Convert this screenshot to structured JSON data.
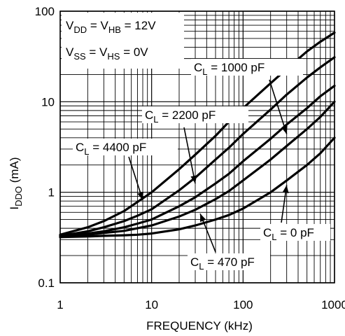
{
  "chart_data": {
    "type": "line",
    "xlabel": "FREQUENCY (kHz)",
    "ylabel": {
      "main": "I",
      "sub": "DDO",
      "unit": " (mA)"
    },
    "xscale": "log",
    "yscale": "log",
    "xlim": [
      1,
      1000
    ],
    "ylim": [
      0.1,
      100
    ],
    "grid": true,
    "x_ticks": [
      {
        "value": 1,
        "label": "1"
      },
      {
        "value": 10,
        "label": "10"
      },
      {
        "value": 100,
        "label": "100"
      },
      {
        "value": 1000,
        "label": "1000"
      }
    ],
    "y_ticks": [
      {
        "value": 0.1,
        "label": "0.1"
      },
      {
        "value": 1,
        "label": "1"
      },
      {
        "value": 10,
        "label": "10"
      },
      {
        "value": 100,
        "label": "100"
      }
    ],
    "conditions": [
      {
        "parts": [
          [
            "V",
            ""
          ],
          [
            "DD",
            "sub"
          ],
          [
            " = V",
            ""
          ],
          [
            "HB",
            "sub"
          ],
          [
            " = 12V",
            ""
          ]
        ]
      },
      {
        "parts": [
          [
            "V",
            ""
          ],
          [
            "SS",
            "sub"
          ],
          [
            " = V",
            ""
          ],
          [
            "HS",
            "sub"
          ],
          [
            " = 0V",
            ""
          ]
        ]
      }
    ],
    "series": [
      {
        "name": {
          "main": "C",
          "sub": "L",
          "rest": " = 4400 pF"
        },
        "points": [
          [
            1,
            0.34
          ],
          [
            2,
            0.41
          ],
          [
            3,
            0.48
          ],
          [
            5,
            0.62
          ],
          [
            7,
            0.78
          ],
          [
            10,
            1.0
          ],
          [
            20,
            1.8
          ],
          [
            30,
            2.6
          ],
          [
            50,
            4.2
          ],
          [
            70,
            6.0
          ],
          [
            100,
            8.5
          ],
          [
            200,
            16
          ],
          [
            300,
            23
          ],
          [
            500,
            36
          ],
          [
            700,
            46
          ],
          [
            1000,
            58
          ]
        ]
      },
      {
        "name": {
          "main": "C",
          "sub": "L",
          "rest": " = 2200 pF"
        },
        "points": [
          [
            1,
            0.33
          ],
          [
            2,
            0.37
          ],
          [
            3,
            0.41
          ],
          [
            5,
            0.48
          ],
          [
            7,
            0.55
          ],
          [
            10,
            0.65
          ],
          [
            20,
            1.05
          ],
          [
            30,
            1.45
          ],
          [
            50,
            2.3
          ],
          [
            70,
            3.1
          ],
          [
            100,
            4.4
          ],
          [
            200,
            8.2
          ],
          [
            300,
            12
          ],
          [
            500,
            18.5
          ],
          [
            700,
            24
          ],
          [
            1000,
            31
          ]
        ]
      },
      {
        "name": {
          "main": "C",
          "sub": "L",
          "rest": " = 1000 pF"
        },
        "points": [
          [
            1,
            0.33
          ],
          [
            2,
            0.35
          ],
          [
            3,
            0.37
          ],
          [
            5,
            0.41
          ],
          [
            7,
            0.45
          ],
          [
            10,
            0.5
          ],
          [
            20,
            0.7
          ],
          [
            30,
            0.88
          ],
          [
            50,
            1.25
          ],
          [
            70,
            1.6
          ],
          [
            100,
            2.2
          ],
          [
            200,
            3.9
          ],
          [
            300,
            5.6
          ],
          [
            500,
            8.5
          ],
          [
            700,
            11.5
          ],
          [
            1000,
            15
          ]
        ]
      },
      {
        "name": {
          "main": "C",
          "sub": "L",
          "rest": " = 470 pF"
        },
        "points": [
          [
            1,
            0.32
          ],
          [
            2,
            0.34
          ],
          [
            3,
            0.355
          ],
          [
            5,
            0.375
          ],
          [
            7,
            0.4
          ],
          [
            10,
            0.43
          ],
          [
            20,
            0.54
          ],
          [
            30,
            0.64
          ],
          [
            50,
            0.84
          ],
          [
            70,
            1.03
          ],
          [
            100,
            1.35
          ],
          [
            200,
            2.3
          ],
          [
            300,
            3.25
          ],
          [
            500,
            5.0
          ],
          [
            700,
            6.8
          ],
          [
            1000,
            10
          ]
        ]
      },
      {
        "name": {
          "main": "C",
          "sub": "L",
          "rest": " = 0 pF"
        },
        "points": [
          [
            1,
            0.32
          ],
          [
            2,
            0.325
          ],
          [
            3,
            0.33
          ],
          [
            5,
            0.335
          ],
          [
            7,
            0.34
          ],
          [
            10,
            0.35
          ],
          [
            20,
            0.39
          ],
          [
            30,
            0.43
          ],
          [
            50,
            0.5
          ],
          [
            70,
            0.56
          ],
          [
            100,
            0.66
          ],
          [
            200,
            1.0
          ],
          [
            300,
            1.35
          ],
          [
            500,
            2.0
          ],
          [
            700,
            2.7
          ],
          [
            1000,
            4.0
          ]
        ]
      }
    ]
  }
}
